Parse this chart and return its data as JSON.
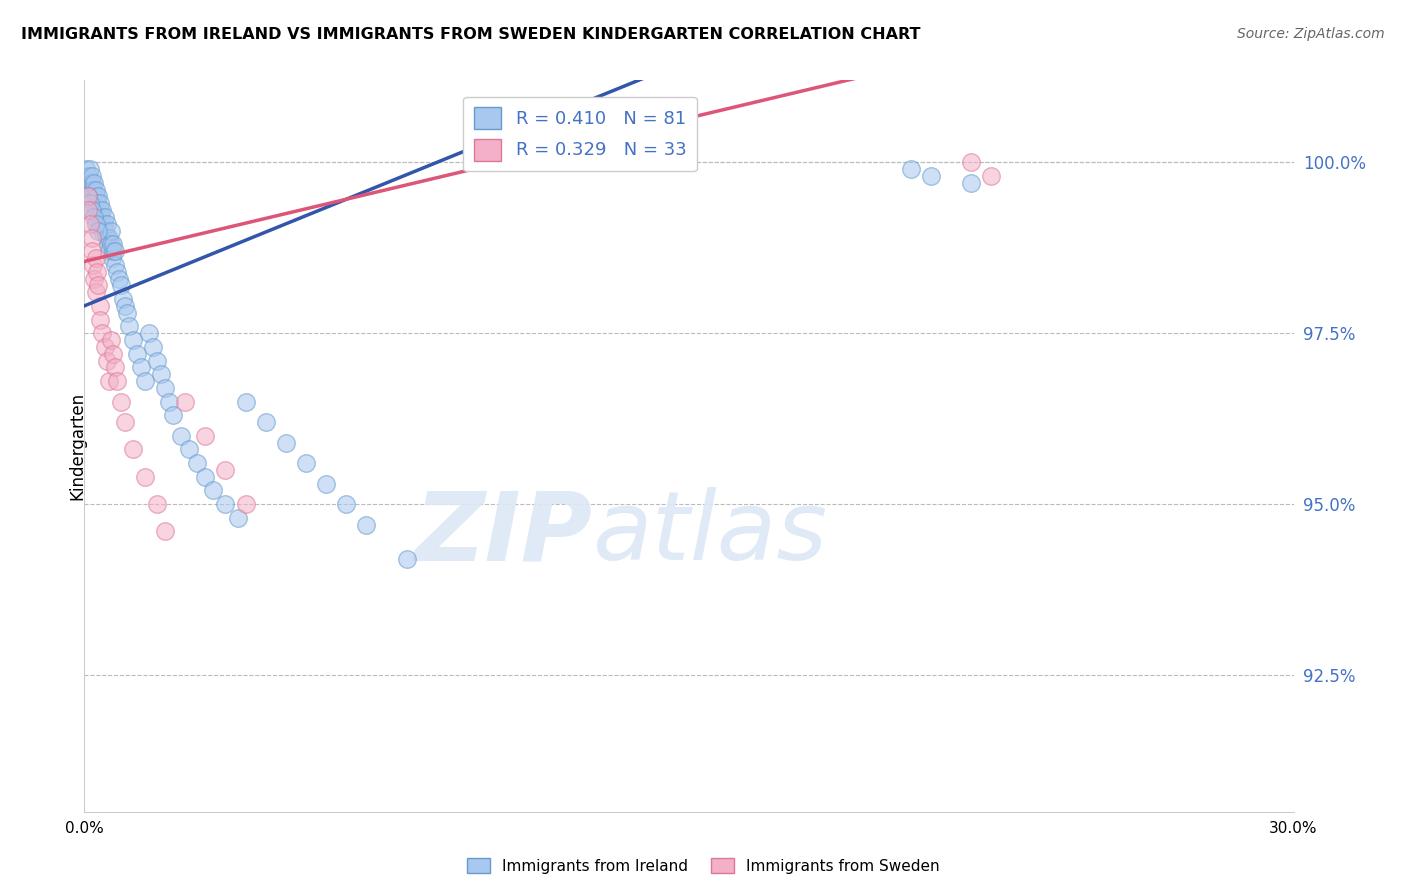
{
  "title": "IMMIGRANTS FROM IRELAND VS IMMIGRANTS FROM SWEDEN KINDERGARTEN CORRELATION CHART",
  "source": "Source: ZipAtlas.com",
  "ylabel": "Kindergarten",
  "xlim": [
    0.0,
    30.0
  ],
  "ylim": [
    90.5,
    101.2
  ],
  "ireland_color": "#a8c8f0",
  "ireland_edge_color": "#6699cc",
  "sweden_color": "#f4b0c8",
  "sweden_edge_color": "#dd7799",
  "ireland_R": 0.41,
  "ireland_N": 81,
  "sweden_R": 0.329,
  "sweden_N": 33,
  "trend_ireland_color": "#3355aa",
  "trend_sweden_color": "#dd5577",
  "watermark_zip": "ZIP",
  "watermark_atlas": "atlas",
  "legend_label_ireland": "Immigrants from Ireland",
  "legend_label_sweden": "Immigrants from Sweden",
  "ytick_vals": [
    92.5,
    95.0,
    97.5,
    100.0
  ],
  "ireland_x": [
    0.05,
    0.08,
    0.1,
    0.12,
    0.15,
    0.15,
    0.18,
    0.2,
    0.2,
    0.22,
    0.25,
    0.25,
    0.28,
    0.3,
    0.3,
    0.32,
    0.35,
    0.35,
    0.38,
    0.4,
    0.4,
    0.42,
    0.45,
    0.45,
    0.48,
    0.5,
    0.52,
    0.55,
    0.55,
    0.58,
    0.6,
    0.62,
    0.65,
    0.65,
    0.68,
    0.7,
    0.72,
    0.75,
    0.75,
    0.8,
    0.85,
    0.9,
    0.95,
    1.0,
    1.05,
    1.1,
    1.2,
    1.3,
    1.4,
    1.5,
    1.6,
    1.7,
    1.8,
    1.9,
    2.0,
    2.1,
    2.2,
    2.4,
    2.6,
    2.8,
    3.0,
    3.2,
    3.5,
    3.8,
    4.0,
    4.5,
    5.0,
    5.5,
    6.0,
    6.5,
    7.0,
    8.0,
    20.5,
    21.0,
    22.0,
    0.1,
    0.15,
    0.2,
    0.25,
    0.3,
    0.35
  ],
  "ireland_y": [
    99.9,
    99.8,
    99.7,
    99.8,
    99.6,
    99.9,
    99.7,
    99.8,
    99.5,
    99.6,
    99.7,
    99.4,
    99.5,
    99.6,
    99.3,
    99.4,
    99.5,
    99.2,
    99.3,
    99.4,
    99.1,
    99.2,
    99.3,
    99.0,
    99.1,
    99.2,
    99.0,
    98.9,
    99.1,
    98.8,
    98.9,
    98.7,
    98.8,
    99.0,
    98.6,
    98.7,
    98.8,
    98.5,
    98.7,
    98.4,
    98.3,
    98.2,
    98.0,
    97.9,
    97.8,
    97.6,
    97.4,
    97.2,
    97.0,
    96.8,
    97.5,
    97.3,
    97.1,
    96.9,
    96.7,
    96.5,
    96.3,
    96.0,
    95.8,
    95.6,
    95.4,
    95.2,
    95.0,
    94.8,
    96.5,
    96.2,
    95.9,
    95.6,
    95.3,
    95.0,
    94.7,
    94.2,
    99.9,
    99.8,
    99.7,
    99.5,
    99.4,
    99.3,
    99.2,
    99.1,
    99.0
  ],
  "sweden_x": [
    0.08,
    0.1,
    0.15,
    0.18,
    0.2,
    0.22,
    0.25,
    0.28,
    0.3,
    0.32,
    0.35,
    0.38,
    0.4,
    0.45,
    0.5,
    0.55,
    0.6,
    0.65,
    0.7,
    0.75,
    0.8,
    0.9,
    1.0,
    1.2,
    1.5,
    1.8,
    2.0,
    2.5,
    3.0,
    3.5,
    4.0,
    22.0,
    22.5
  ],
  "sweden_y": [
    99.5,
    99.3,
    99.1,
    98.9,
    98.7,
    98.5,
    98.3,
    98.1,
    98.6,
    98.4,
    98.2,
    97.9,
    97.7,
    97.5,
    97.3,
    97.1,
    96.8,
    97.4,
    97.2,
    97.0,
    96.8,
    96.5,
    96.2,
    95.8,
    95.4,
    95.0,
    94.6,
    96.5,
    96.0,
    95.5,
    95.0,
    100.0,
    99.8
  ],
  "trend_ireland_x0": 0.0,
  "trend_ireland_y0": 97.9,
  "trend_ireland_x1": 7.5,
  "trend_ireland_y1": 99.7,
  "trend_sweden_x0": 0.0,
  "trend_sweden_y0": 98.55,
  "trend_sweden_x1": 7.5,
  "trend_sweden_y1": 99.6
}
